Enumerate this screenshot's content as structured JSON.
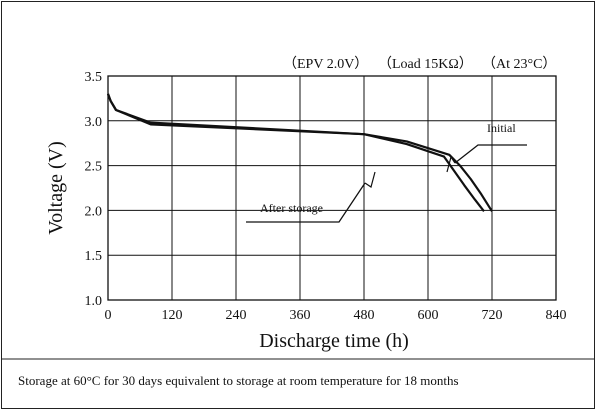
{
  "chart_data": {
    "type": "line",
    "header": {
      "epv": "（EPV 2.0V）",
      "load": "（Load 15KΩ）",
      "temp": "（At 23°C）"
    },
    "xlabel": "Discharge time (h)",
    "ylabel": "Voltage (V)",
    "xlim": [
      0,
      840
    ],
    "ylim": [
      1.0,
      3.5
    ],
    "x_ticks": [
      "0",
      "120",
      "240",
      "360",
      "480",
      "600",
      "720",
      "840"
    ],
    "y_ticks": [
      "1.0",
      "1.5",
      "2.0",
      "2.5",
      "3.0",
      "3.5"
    ],
    "grid": true,
    "series": [
      {
        "name": "Initial",
        "x": [
          0,
          5,
          15,
          80,
          480,
          560,
          640,
          660,
          680,
          700,
          720
        ],
        "y": [
          3.3,
          3.22,
          3.12,
          2.98,
          2.85,
          2.77,
          2.62,
          2.5,
          2.35,
          2.18,
          1.99
        ]
      },
      {
        "name": "After storage",
        "x": [
          0,
          5,
          15,
          80,
          480,
          560,
          630,
          648,
          668,
          688,
          705
        ],
        "y": [
          3.3,
          3.22,
          3.12,
          2.96,
          2.85,
          2.74,
          2.6,
          2.45,
          2.28,
          2.12,
          1.99
        ]
      }
    ],
    "annotations": {
      "initial": "Initial",
      "after_storage": "After storage"
    },
    "caption": "Storage at 60°C for 30 days equivalent to storage at room temperature for 18 months"
  }
}
